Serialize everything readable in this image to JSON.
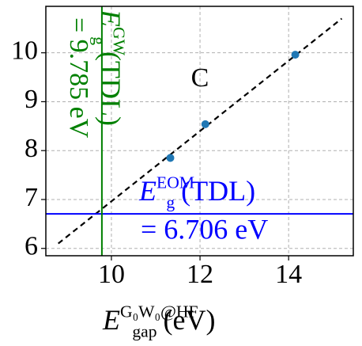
{
  "chart_data": {
    "type": "scatter",
    "x": [
      11.33,
      12.12,
      14.15
    ],
    "series": [
      {
        "color": "#1f77b4",
        "values": [
          7.85,
          8.54,
          9.96
        ]
      }
    ],
    "fit_line": {
      "x": [
        8.8,
        15.2
      ],
      "y": [
        6.1,
        10.7
      ],
      "color": "#000000",
      "dashed": true
    },
    "hline": {
      "value": 6.706,
      "color": "#0000ff"
    },
    "vline": {
      "value": 9.785,
      "color": "#008000"
    },
    "xlim": [
      8.52,
      15.46
    ],
    "ylim": [
      5.85,
      10.95
    ],
    "xticks": [
      10,
      12,
      14
    ],
    "yticks": [
      6,
      7,
      8,
      9,
      10
    ],
    "grid": true,
    "xlabel": {
      "main": "E",
      "sub": "gap",
      "sup": "G₀W₀@HF",
      "rest": "(eV)"
    },
    "annotations": [
      {
        "text": "C",
        "color": "#000000"
      },
      {
        "main": "E",
        "sub": "g",
        "sup": "EOM",
        "rest": "(TDL)",
        "value_line": "= 6.706 eV",
        "color": "#0000ff"
      },
      {
        "main": "E",
        "sub": "g",
        "sup": "GW",
        "rest": "(TDL)",
        "value_line": "= 9.785 eV",
        "color": "#008000"
      }
    ]
  }
}
